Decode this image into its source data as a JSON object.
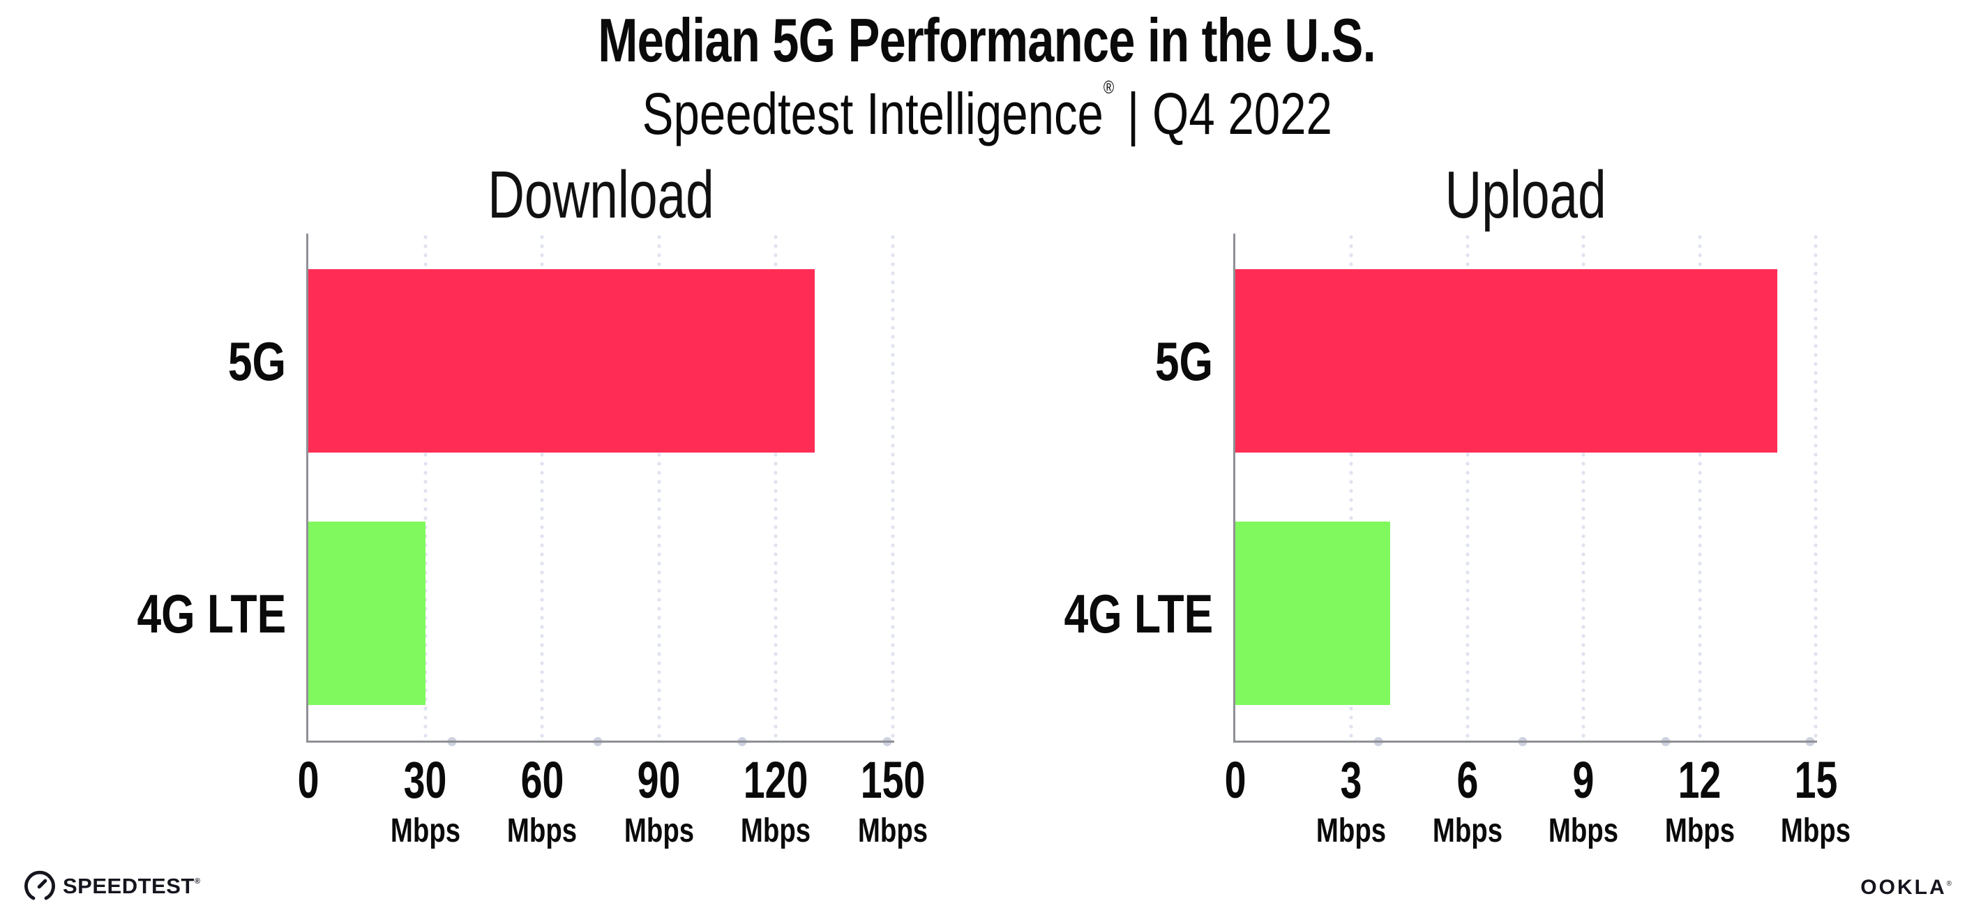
{
  "title": "Median 5G Performance in the U.S.",
  "subtitle": {
    "brand": "Speedtest Intelligence",
    "mark": "®",
    "rest": " | Q4 2022"
  },
  "colors": {
    "bar_5g": "#ff2d55",
    "bar_4g_lte": "#80f95e",
    "gridline": "#e0e3ef",
    "axis": "#8f9095",
    "text": "#0a0a0a"
  },
  "chart_data": [
    {
      "type": "bar",
      "orientation": "horizontal",
      "title": "Download",
      "categories": [
        "5G",
        "4G LTE"
      ],
      "values": [
        130,
        30
      ],
      "unit": "Mbps",
      "xlim": [
        0,
        150
      ],
      "ticks": [
        0,
        30,
        60,
        90,
        120,
        150
      ],
      "tick_unit": "Mbps",
      "bar_colors": [
        "#ff2d55",
        "#80f95e"
      ],
      "grid": "dotted-vertical",
      "legend": "none"
    },
    {
      "type": "bar",
      "orientation": "horizontal",
      "title": "Upload",
      "categories": [
        "5G",
        "4G LTE"
      ],
      "values": [
        14,
        4
      ],
      "unit": "Mbps",
      "xlim": [
        0,
        15
      ],
      "ticks": [
        0,
        3,
        6,
        9,
        12,
        15
      ],
      "tick_unit": "Mbps",
      "bar_colors": [
        "#ff2d55",
        "#80f95e"
      ],
      "grid": "dotted-vertical",
      "legend": "none"
    }
  ],
  "footer": {
    "speedtest": "SPEEDTEST",
    "speedtest_mark": "®",
    "ookla": "OOKLA",
    "ookla_mark": "®"
  }
}
